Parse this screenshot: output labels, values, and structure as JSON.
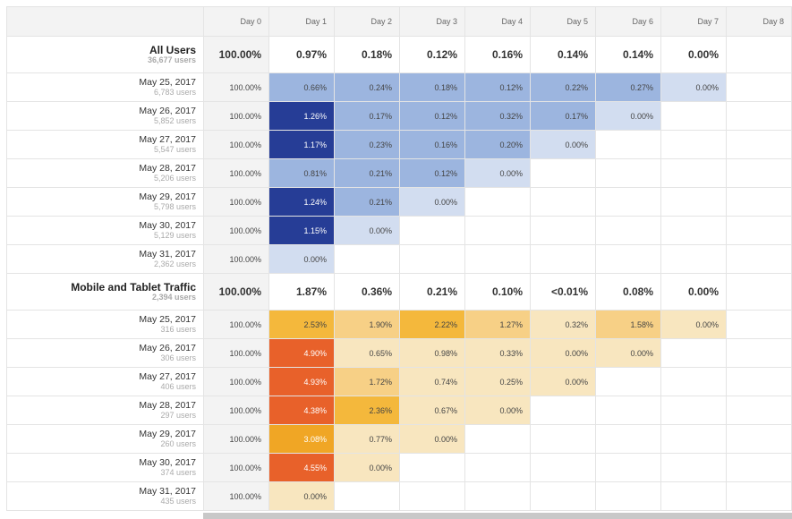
{
  "header": [
    "Day 0",
    "Day 1",
    "Day 2",
    "Day 3",
    "Day 4",
    "Day 5",
    "Day 6",
    "Day 7",
    "Day 8"
  ],
  "segments": [
    {
      "name": "All Users",
      "users": "36,677 users",
      "totals": [
        "100.00%",
        "0.97%",
        "0.18%",
        "0.12%",
        "0.16%",
        "0.14%",
        "0.14%",
        "0.00%",
        ""
      ],
      "rows": [
        {
          "date": "May 25, 2017",
          "users": "6,783 users",
          "cells": [
            [
              "0.66%",
              "#9cb5df"
            ],
            [
              "0.24%",
              "#9cb5df"
            ],
            [
              "0.18%",
              "#9cb5df"
            ],
            [
              "0.12%",
              "#9cb5df"
            ],
            [
              "0.22%",
              "#9cb5df"
            ],
            [
              "0.27%",
              "#9cb5df"
            ],
            [
              "0.00%",
              "#d2ddf0"
            ]
          ]
        },
        {
          "date": "May 26, 2017",
          "users": "5,852 users",
          "cells": [
            [
              "1.26%",
              "#263d96"
            ],
            [
              "0.17%",
              "#9cb5df"
            ],
            [
              "0.12%",
              "#9cb5df"
            ],
            [
              "0.32%",
              "#9cb5df"
            ],
            [
              "0.17%",
              "#9cb5df"
            ],
            [
              "0.00%",
              "#d2ddf0"
            ]
          ]
        },
        {
          "date": "May 27, 2017",
          "users": "5,547 users",
          "cells": [
            [
              "1.17%",
              "#263d96"
            ],
            [
              "0.23%",
              "#9cb5df"
            ],
            [
              "0.16%",
              "#9cb5df"
            ],
            [
              "0.20%",
              "#9cb5df"
            ],
            [
              "0.00%",
              "#d2ddf0"
            ]
          ]
        },
        {
          "date": "May 28, 2017",
          "users": "5,206 users",
          "cells": [
            [
              "0.81%",
              "#9cb5df"
            ],
            [
              "0.21%",
              "#9cb5df"
            ],
            [
              "0.12%",
              "#9cb5df"
            ],
            [
              "0.00%",
              "#d2ddf0"
            ]
          ]
        },
        {
          "date": "May 29, 2017",
          "users": "5,798 users",
          "cells": [
            [
              "1.24%",
              "#263d96"
            ],
            [
              "0.21%",
              "#9cb5df"
            ],
            [
              "0.00%",
              "#d2ddf0"
            ]
          ]
        },
        {
          "date": "May 30, 2017",
          "users": "5,129 users",
          "cells": [
            [
              "1.15%",
              "#263d96"
            ],
            [
              "0.00%",
              "#d2ddf0"
            ]
          ]
        },
        {
          "date": "May 31, 2017",
          "users": "2,362 users",
          "cells": [
            [
              "0.00%",
              "#d2ddf0"
            ]
          ]
        }
      ]
    },
    {
      "name": "Mobile and Tablet Traffic",
      "users": "2,394 users",
      "totals": [
        "100.00%",
        "1.87%",
        "0.36%",
        "0.21%",
        "0.10%",
        "<0.01%",
        "0.08%",
        "0.00%",
        ""
      ],
      "rows": [
        {
          "date": "May 25, 2017",
          "users": "316 users",
          "cells": [
            [
              "2.53%",
              "#f4b83c"
            ],
            [
              "1.90%",
              "#f7d086"
            ],
            [
              "2.22%",
              "#f4b83c"
            ],
            [
              "1.27%",
              "#f7d086"
            ],
            [
              "0.32%",
              "#f8e6bf"
            ],
            [
              "1.58%",
              "#f7d086"
            ],
            [
              "0.00%",
              "#f8e6bf"
            ]
          ]
        },
        {
          "date": "May 26, 2017",
          "users": "306 users",
          "cells": [
            [
              "4.90%",
              "#e8612a"
            ],
            [
              "0.65%",
              "#f8e6bf"
            ],
            [
              "0.98%",
              "#f8e6bf"
            ],
            [
              "0.33%",
              "#f8e6bf"
            ],
            [
              "0.00%",
              "#f8e6bf"
            ],
            [
              "0.00%",
              "#f8e6bf"
            ]
          ]
        },
        {
          "date": "May 27, 2017",
          "users": "406 users",
          "cells": [
            [
              "4.93%",
              "#e8612a"
            ],
            [
              "1.72%",
              "#f7d086"
            ],
            [
              "0.74%",
              "#f8e6bf"
            ],
            [
              "0.25%",
              "#f8e6bf"
            ],
            [
              "0.00%",
              "#f8e6bf"
            ]
          ]
        },
        {
          "date": "May 28, 2017",
          "users": "297 users",
          "cells": [
            [
              "4.38%",
              "#e8612a"
            ],
            [
              "2.36%",
              "#f4b83c"
            ],
            [
              "0.67%",
              "#f8e6bf"
            ],
            [
              "0.00%",
              "#f8e6bf"
            ]
          ]
        },
        {
          "date": "May 29, 2017",
          "users": "260 users",
          "cells": [
            [
              "3.08%",
              "#f0a625"
            ],
            [
              "0.77%",
              "#f8e6bf"
            ],
            [
              "0.00%",
              "#f8e6bf"
            ]
          ]
        },
        {
          "date": "May 30, 2017",
          "users": "374 users",
          "cells": [
            [
              "4.55%",
              "#e8612a"
            ],
            [
              "0.00%",
              "#f8e6bf"
            ]
          ]
        },
        {
          "date": "May 31, 2017",
          "users": "435 users",
          "cells": [
            [
              "0.00%",
              "#f8e6bf"
            ]
          ]
        }
      ]
    }
  ],
  "day0_value": "100.00%"
}
